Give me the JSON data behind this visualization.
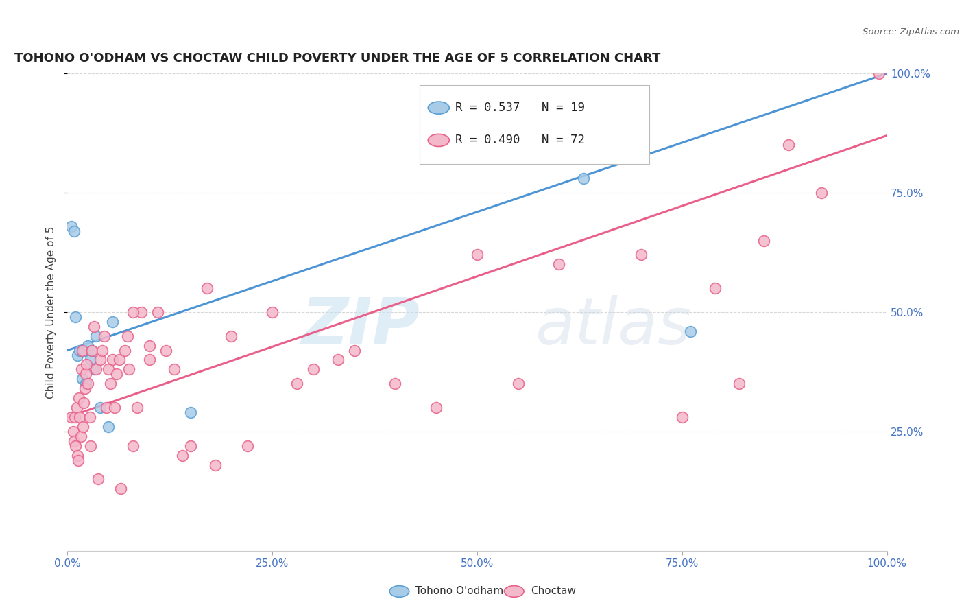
{
  "title": "TOHONO O'ODHAM VS CHOCTAW CHILD POVERTY UNDER THE AGE OF 5 CORRELATION CHART",
  "source": "Source: ZipAtlas.com",
  "ylabel": "Child Poverty Under the Age of 5",
  "xlim": [
    0,
    1
  ],
  "ylim": [
    0,
    1
  ],
  "blue_fill": "#a8cce8",
  "blue_edge": "#5a9fd4",
  "pink_fill": "#f4b8cb",
  "pink_edge": "#e8608a",
  "blue_line": "#4d94d4",
  "pink_line": "#e8608a",
  "legend_blue_text": "R = 0.537   N = 19",
  "legend_pink_text": "R = 0.490   N = 72",
  "watermark": "ZIPatlas",
  "background_color": "#ffffff",
  "grid_color": "#d8d8d8",
  "tick_color": "#4472c4",
  "title_color": "#222222",
  "source_color": "#666666",
  "tohono_x": [
    0.005,
    0.008,
    0.01,
    0.012,
    0.015,
    0.018,
    0.02,
    0.022,
    0.025,
    0.028,
    0.03,
    0.032,
    0.035,
    0.04,
    0.05,
    0.055,
    0.15,
    0.63,
    0.76
  ],
  "tohono_y": [
    0.68,
    0.67,
    0.49,
    0.41,
    0.42,
    0.36,
    0.42,
    0.35,
    0.43,
    0.4,
    0.42,
    0.38,
    0.45,
    0.3,
    0.26,
    0.48,
    0.29,
    0.78,
    0.46
  ],
  "choctaw_x": [
    0.005,
    0.007,
    0.008,
    0.009,
    0.01,
    0.011,
    0.012,
    0.013,
    0.014,
    0.015,
    0.016,
    0.017,
    0.018,
    0.019,
    0.02,
    0.021,
    0.022,
    0.023,
    0.025,
    0.027,
    0.028,
    0.03,
    0.032,
    0.035,
    0.037,
    0.04,
    0.042,
    0.045,
    0.047,
    0.05,
    0.052,
    0.055,
    0.057,
    0.06,
    0.063,
    0.065,
    0.07,
    0.073,
    0.075,
    0.08,
    0.085,
    0.09,
    0.1,
    0.11,
    0.12,
    0.13,
    0.14,
    0.15,
    0.17,
    0.18,
    0.2,
    0.22,
    0.25,
    0.28,
    0.3,
    0.33,
    0.35,
    0.4,
    0.45,
    0.5,
    0.55,
    0.6,
    0.7,
    0.75,
    0.79,
    0.82,
    0.85,
    0.88,
    0.92,
    0.99,
    0.1,
    0.08
  ],
  "choctaw_y": [
    0.28,
    0.25,
    0.23,
    0.28,
    0.22,
    0.3,
    0.2,
    0.19,
    0.32,
    0.28,
    0.24,
    0.38,
    0.42,
    0.26,
    0.31,
    0.34,
    0.37,
    0.39,
    0.35,
    0.28,
    0.22,
    0.42,
    0.47,
    0.38,
    0.15,
    0.4,
    0.42,
    0.45,
    0.3,
    0.38,
    0.35,
    0.4,
    0.3,
    0.37,
    0.4,
    0.13,
    0.42,
    0.45,
    0.38,
    0.22,
    0.3,
    0.5,
    0.43,
    0.5,
    0.42,
    0.38,
    0.2,
    0.22,
    0.55,
    0.18,
    0.45,
    0.22,
    0.5,
    0.35,
    0.38,
    0.4,
    0.42,
    0.35,
    0.3,
    0.62,
    0.35,
    0.6,
    0.62,
    0.28,
    0.55,
    0.35,
    0.65,
    0.85,
    0.75,
    1.0,
    0.4,
    0.5
  ],
  "blue_intercept": 0.42,
  "blue_slope": 0.58,
  "pink_intercept": 0.28,
  "pink_slope": 0.59
}
